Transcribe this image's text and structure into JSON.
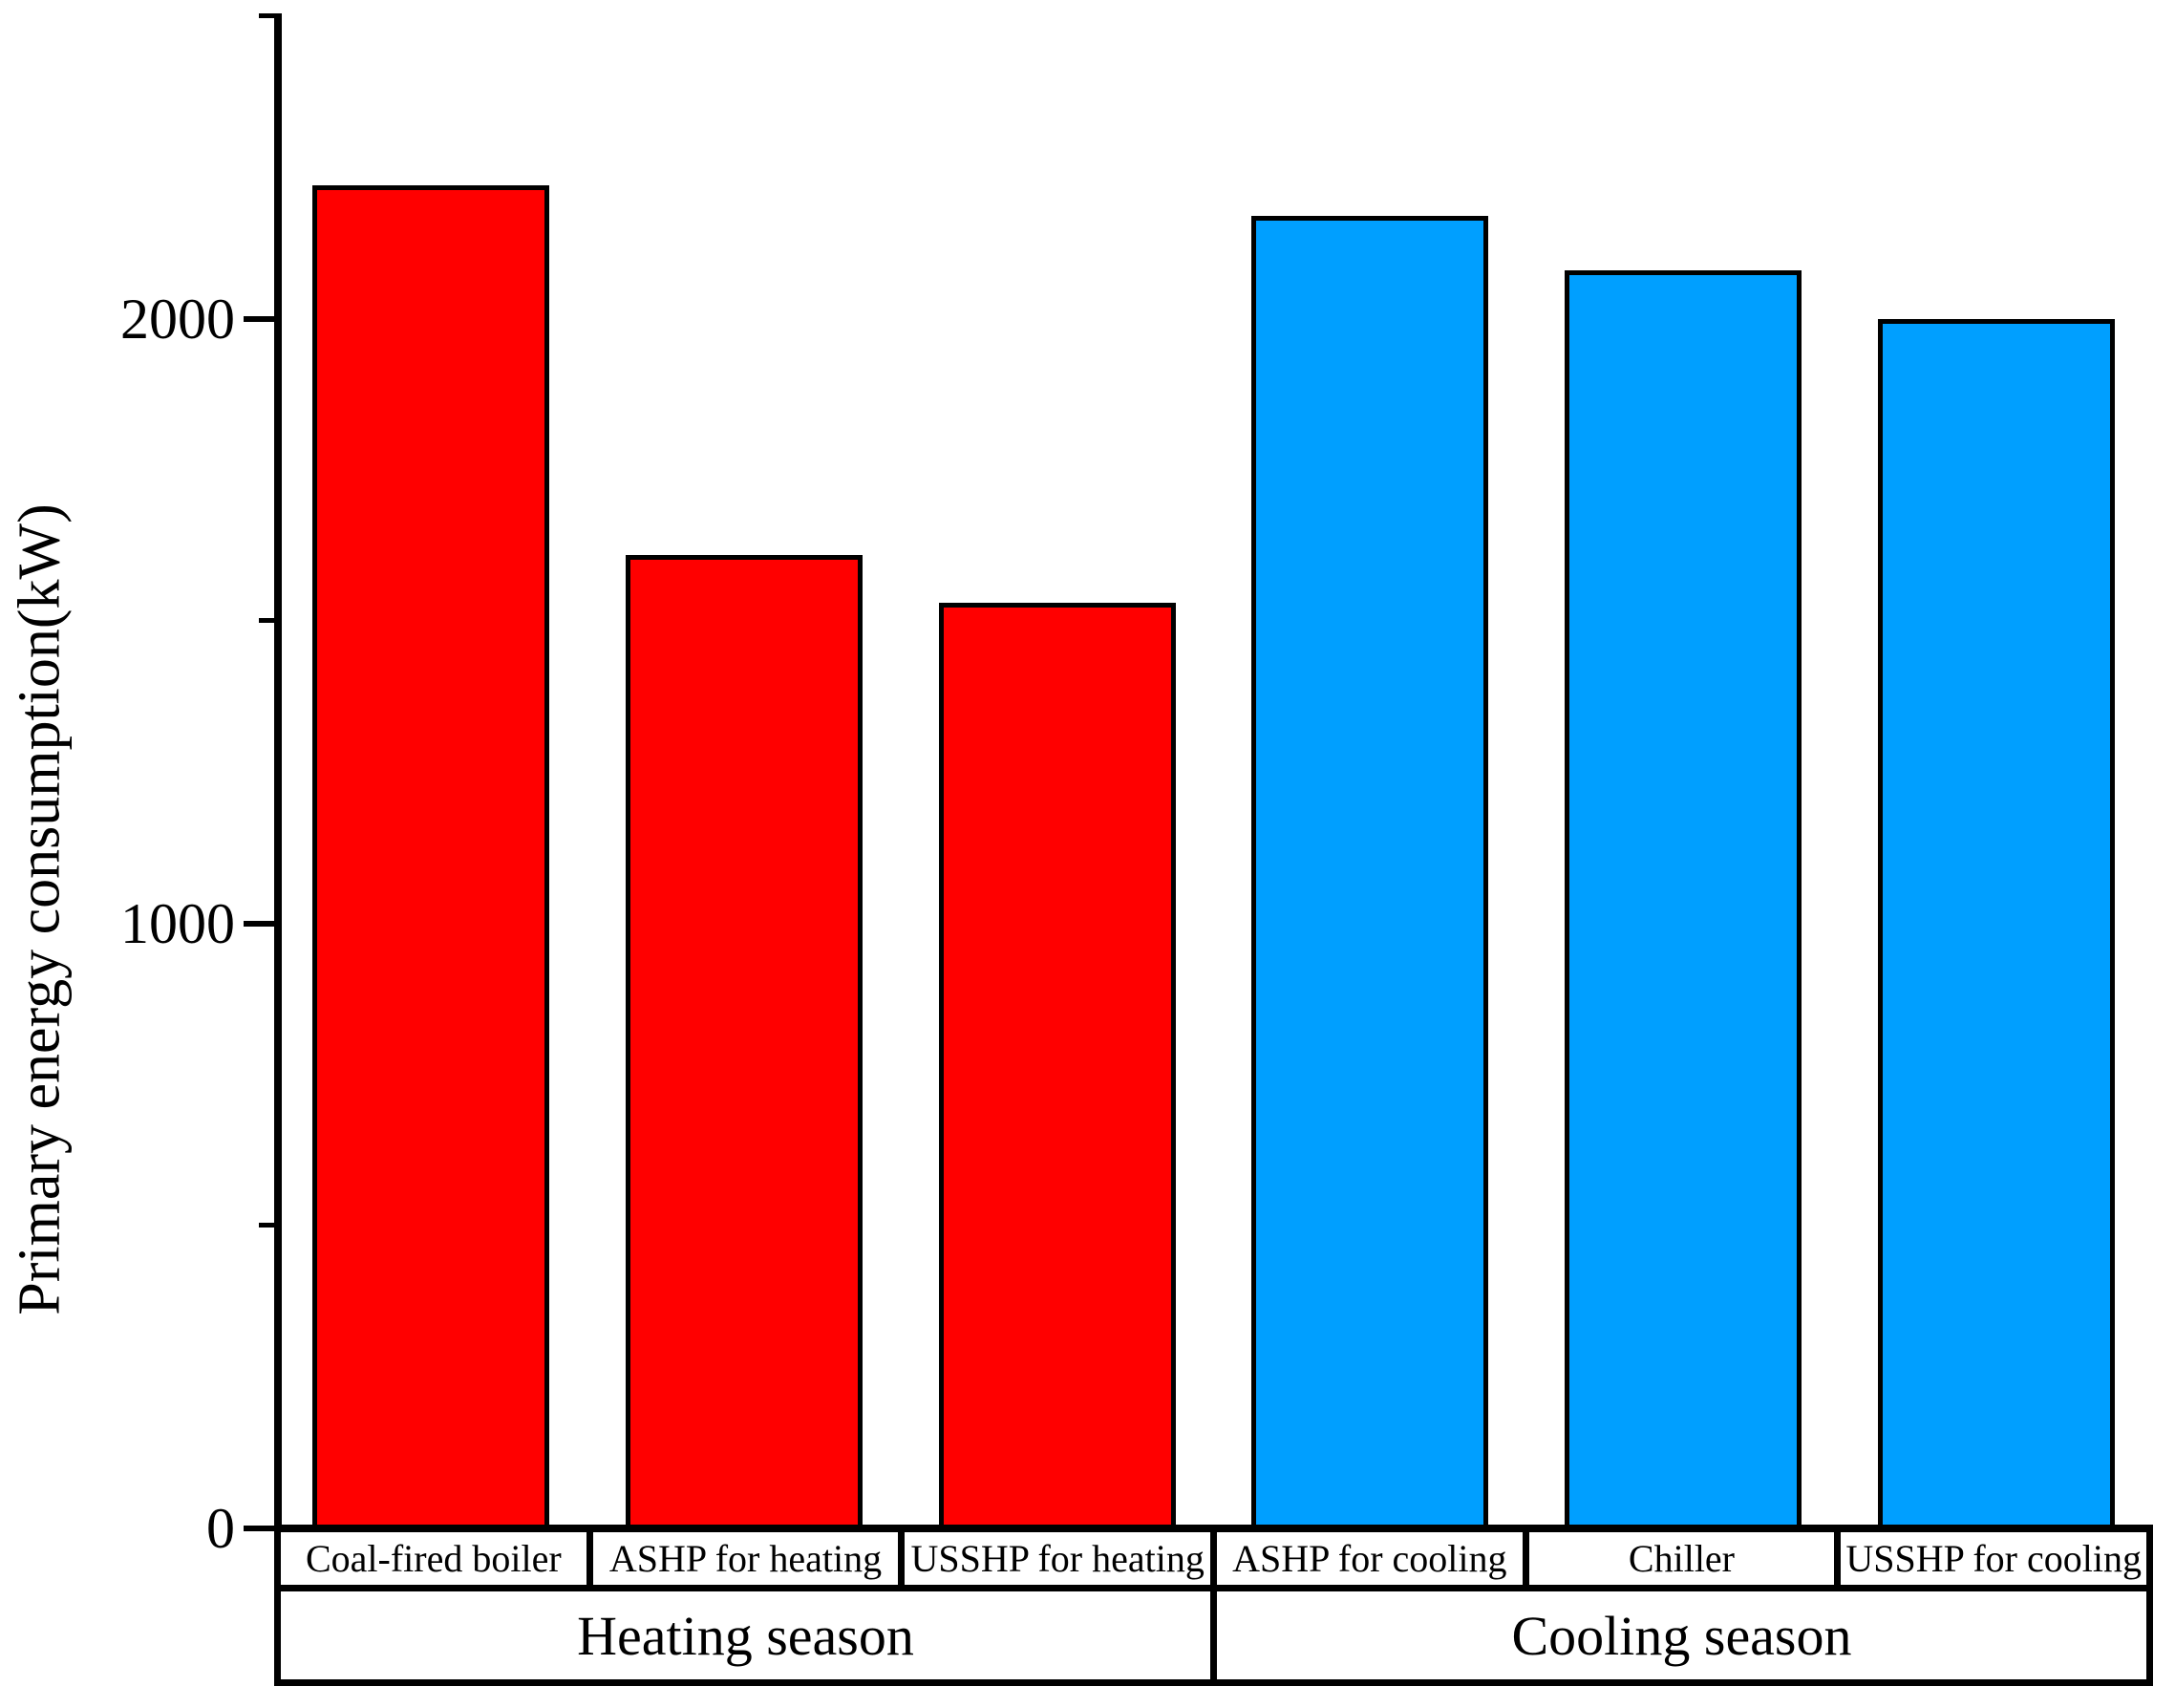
{
  "figure": {
    "background": "#ffffff",
    "axis_color": "#000000"
  },
  "chart_data": {
    "type": "bar",
    "title": "",
    "xlabel": "",
    "ylabel": "Primary energy consumption(kW)",
    "ylim": [
      0,
      2500
    ],
    "yticks_major": [
      0,
      1000,
      2000
    ],
    "yticks_minor": [
      500,
      1500,
      2500
    ],
    "ytick_labels": [
      "0",
      "1000",
      "2000"
    ],
    "grid": false,
    "legend_position": "none",
    "categories": [
      "Coal-fired boiler",
      "ASHP for heating",
      "USSHP for heating",
      "ASHP for cooling",
      "Chiller",
      "USSHP for cooling"
    ],
    "values": [
      2220,
      1610,
      1530,
      2170,
      2080,
      2000
    ],
    "bar_colors": [
      "#FF0000",
      "#FF0000",
      "#FF0000",
      "#009FFF",
      "#009FFF",
      "#009FFF"
    ],
    "bar_edge_color": "#000000",
    "groups": [
      {
        "label": "Heating season",
        "span": 3,
        "color": "#FF0000"
      },
      {
        "label": "Cooling season",
        "span": 3,
        "color": "#009FFF"
      }
    ]
  }
}
